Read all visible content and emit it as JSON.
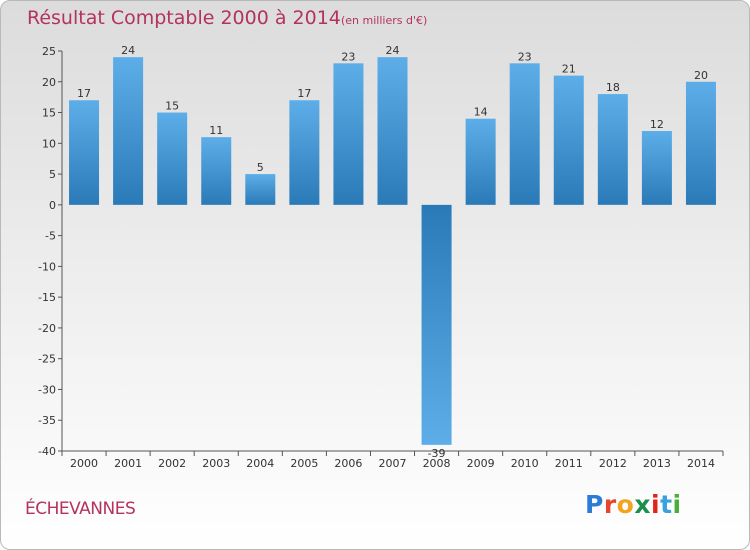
{
  "title": "Résultat Comptable 2000 à 2014",
  "subtitle": "(en milliers d'€)",
  "commune": "ÉCHEVANNES",
  "logo": {
    "letters": [
      "P",
      "r",
      "o",
      "x",
      "i",
      "t",
      "i"
    ],
    "colors": [
      "#2c7bd4",
      "#e8452c",
      "#f2a41f",
      "#1d8f4d",
      "#e2231a",
      "#3aa0de",
      "#4cae38"
    ]
  },
  "colors": {
    "bar_light": "#5daee8",
    "bar_dark": "#2a7ab8",
    "title": "#b3335f"
  },
  "chart_data": {
    "type": "bar",
    "title": "Résultat Comptable 2000 à 2014",
    "subtitle": "(en milliers d'€)",
    "xlabel": "",
    "ylabel": "",
    "categories": [
      "2000",
      "2001",
      "2002",
      "2003",
      "2004",
      "2005",
      "2006",
      "2007",
      "2008",
      "2009",
      "2010",
      "2011",
      "2012",
      "2013",
      "2014"
    ],
    "values": [
      17,
      24,
      15,
      11,
      5,
      17,
      23,
      24,
      -39,
      14,
      23,
      21,
      18,
      12,
      20
    ],
    "ylim": [
      -40,
      25
    ],
    "yticks": [
      25,
      20,
      15,
      10,
      5,
      0,
      -5,
      -10,
      -15,
      -20,
      -25,
      -30,
      -35,
      -40
    ],
    "grid": false
  }
}
